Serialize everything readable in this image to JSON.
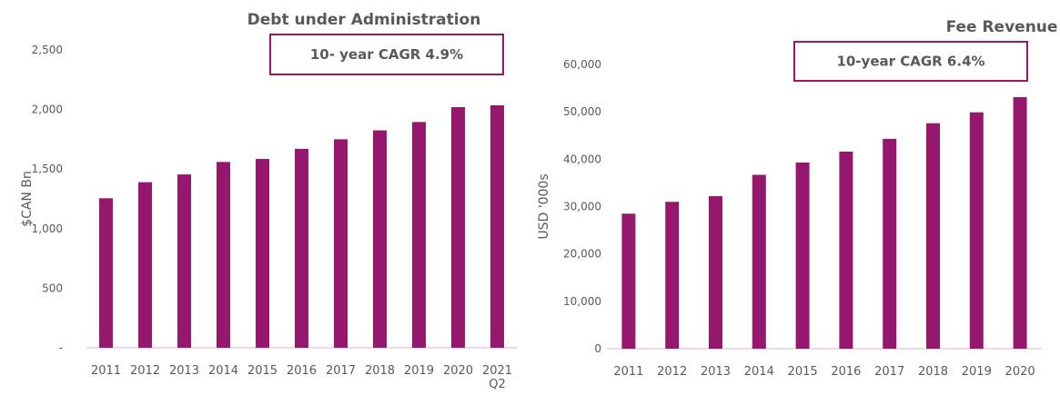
{
  "colors": {
    "bar": "#96186e",
    "axis": "#f2c8e0",
    "box": "#96186e",
    "text": "#595959"
  },
  "chart_data": [
    {
      "type": "bar",
      "title": "Debt under Administration",
      "annotation": "10- year CAGR 4.9%",
      "ylabel": "$CAN Bn",
      "xlabel": "",
      "ylim": [
        0,
        2500
      ],
      "yticks": [
        0,
        500,
        1000,
        1500,
        2000,
        2500
      ],
      "ytick_labels": [
        "-",
        "500",
        "1,000",
        "1,500",
        "2,000",
        "2,500"
      ],
      "categories": [
        "2011",
        "2012",
        "2013",
        "2014",
        "2015",
        "2016",
        "2017",
        "2018",
        "2019",
        "2020",
        "2021 Q2"
      ],
      "category_lines": [
        [
          "2011"
        ],
        [
          "2012"
        ],
        [
          "2013"
        ],
        [
          "2014"
        ],
        [
          "2015"
        ],
        [
          "2016"
        ],
        [
          "2017"
        ],
        [
          "2018"
        ],
        [
          "2019"
        ],
        [
          "2020"
        ],
        [
          "2021",
          "Q2"
        ]
      ],
      "values": [
        1255,
        1390,
        1455,
        1560,
        1585,
        1670,
        1750,
        1825,
        1895,
        2020,
        2035
      ],
      "grid": false
    },
    {
      "type": "bar",
      "title": "Fee Revenue",
      "annotation": "10-year CAGR 6.4%",
      "ylabel": "USD '000s",
      "xlabel": "",
      "ylim": [
        0,
        60000
      ],
      "yticks": [
        0,
        10000,
        20000,
        30000,
        40000,
        50000,
        60000
      ],
      "ytick_labels": [
        "0",
        "10,000",
        "20,000",
        "30,000",
        "40,000",
        "50,000",
        "60,000"
      ],
      "categories": [
        "2011",
        "2012",
        "2013",
        "2014",
        "2015",
        "2016",
        "2017",
        "2018",
        "2019",
        "2020"
      ],
      "category_lines": [
        [
          "2011"
        ],
        [
          "2012"
        ],
        [
          "2013"
        ],
        [
          "2014"
        ],
        [
          "2015"
        ],
        [
          "2016"
        ],
        [
          "2017"
        ],
        [
          "2018"
        ],
        [
          "2019"
        ],
        [
          "2020"
        ]
      ],
      "values": [
        28500,
        31000,
        32200,
        36700,
        39300,
        41600,
        44300,
        47600,
        49900,
        53100
      ],
      "grid": false
    }
  ]
}
